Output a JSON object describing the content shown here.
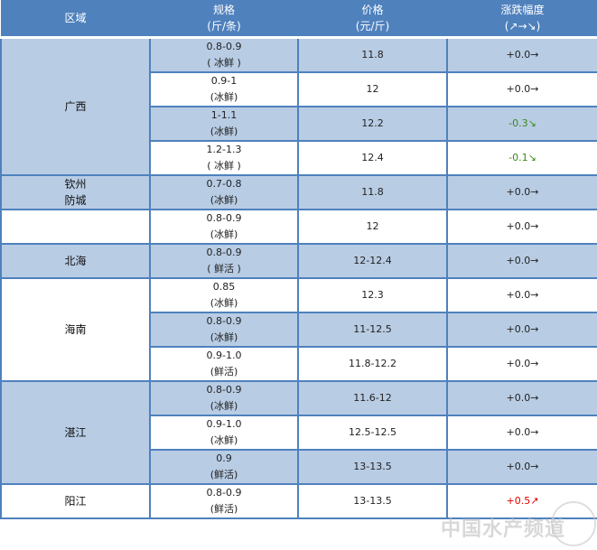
{
  "header": {
    "region": "区域",
    "spec1": "规格",
    "spec2": "(斤/条)",
    "price1": "价格",
    "price2": "(元/斤)",
    "change1": "涨跌幅度",
    "change2": "(↗→↘)"
  },
  "regions": {
    "guangxi": "广西",
    "qinzhou": "钦州",
    "fangcheng": "防城",
    "beihai": "北海",
    "hainan": "海南",
    "zhanjiang": "湛江",
    "yangjiang": "阳江"
  },
  "rows": [
    {
      "size": "0.8-0.9",
      "type": "( 冰鲜 )",
      "price": "11.8",
      "change": "+0.0→",
      "trend": "flat"
    },
    {
      "size": "0.9-1",
      "type": "(冰鲜)",
      "price": "12",
      "change": "+0.0→",
      "trend": "flat"
    },
    {
      "size": "1-1.1",
      "type": "(冰鲜)",
      "price": "12.2",
      "change": "-0.3↘",
      "trend": "down"
    },
    {
      "size": "1.2-1.3",
      "type": "( 冰鲜 )",
      "price": "12.4",
      "change": "-0.1↘",
      "trend": "down"
    },
    {
      "size": "0.7-0.8",
      "type": "(冰鲜)",
      "price": "11.8",
      "change": "+0.0→",
      "trend": "flat"
    },
    {
      "size": "0.8-0.9",
      "type": "(冰鲜)",
      "price": "12",
      "change": "+0.0→",
      "trend": "flat"
    },
    {
      "size": "0.8-0.9",
      "type": "( 鲜活 )",
      "price": "12-12.4",
      "change": "+0.0→",
      "trend": "flat"
    },
    {
      "size": "0.85",
      "type": "(冰鲜)",
      "price": "12.3",
      "change": "+0.0→",
      "trend": "flat"
    },
    {
      "size": "0.8-0.9",
      "type": "(冰鲜)",
      "price": "11-12.5",
      "change": "+0.0→",
      "trend": "flat"
    },
    {
      "size": "0.9-1.0",
      "type": "(鲜活)",
      "price": "11.8-12.2",
      "change": "+0.0→",
      "trend": "flat"
    },
    {
      "size": "0.8-0.9",
      "type": "(冰鲜)",
      "price": "11.6-12",
      "change": "+0.0→",
      "trend": "flat"
    },
    {
      "size": "0.9-1.0",
      "type": "(冰鲜)",
      "price": "12.5-12.5",
      "change": "+0.0→",
      "trend": "flat"
    },
    {
      "size": "0.9",
      "type": "(鲜活)",
      "price": "13-13.5",
      "change": "+0.0→",
      "trend": "flat"
    },
    {
      "size": "0.8-0.9",
      "type": "(鲜活)",
      "price": "13-13.5",
      "change": "+0.5↗",
      "trend": "up"
    }
  ],
  "colors": {
    "header": "#4f81bd",
    "band": "#b8cce4",
    "down": "#3a8a1a",
    "up": "#e00000"
  },
  "watermark": "中国水产频道"
}
